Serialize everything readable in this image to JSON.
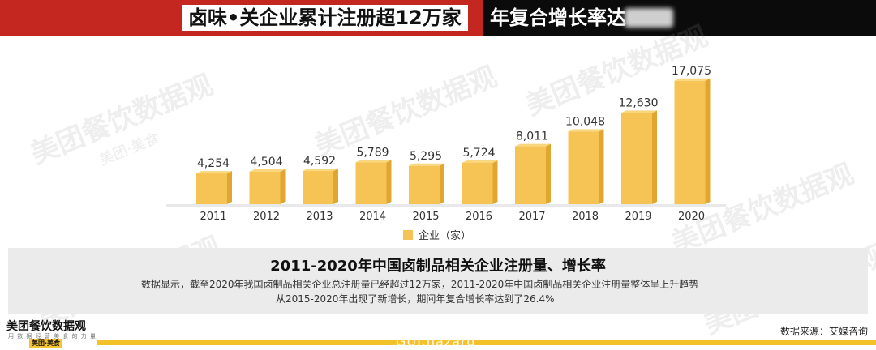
{
  "header": {
    "title_left": "卤味•关企业累计注册超12万家",
    "title_right": "年复合增长率达"
  },
  "watermark": {
    "text": "美团餐饮数据观",
    "sub": "美团·美食"
  },
  "chart_data": {
    "type": "bar",
    "categories": [
      "2011",
      "2012",
      "2013",
      "2014",
      "2015",
      "2016",
      "2017",
      "2018",
      "2019",
      "2020"
    ],
    "values": [
      4254,
      4504,
      4592,
      5789,
      5295,
      5724,
      8011,
      10048,
      12630,
      17075
    ],
    "value_labels": [
      "4,254",
      "4,504",
      "4,592",
      "5,789",
      "5,295",
      "5,724",
      "8,011",
      "10,048",
      "12,630",
      "17,075"
    ],
    "series": [
      {
        "name": "企业（家）",
        "values": [
          4254,
          4504,
          4592,
          5789,
          5295,
          5724,
          8011,
          10048,
          12630,
          17075
        ]
      }
    ],
    "ylim": [
      0,
      17500
    ],
    "legend_position": "bottom-center",
    "bar_color": "#f6c454",
    "bar_side_color": "#e0a62f"
  },
  "caption": {
    "title": "2011-2020年中国卤制品相关企业注册量、增长率",
    "desc_line1": "数据显示，截至2020年我国卤制品相关企业总注册量已经超过12万家，2011-2020年中国卤制品相关企业注册量整体呈上升趋势",
    "desc_line2": "从2015-2020年出现了新增长，期间年复合增长率达到了26.4%"
  },
  "footer": {
    "brand": "美团餐饮数据观",
    "brand_sub": "用 数 据 经 营 美 食 的 力 量",
    "logo": "美团·美食",
    "source": "数据来源：艾媒咨询",
    "site_watermark": "GUI.hazard"
  }
}
